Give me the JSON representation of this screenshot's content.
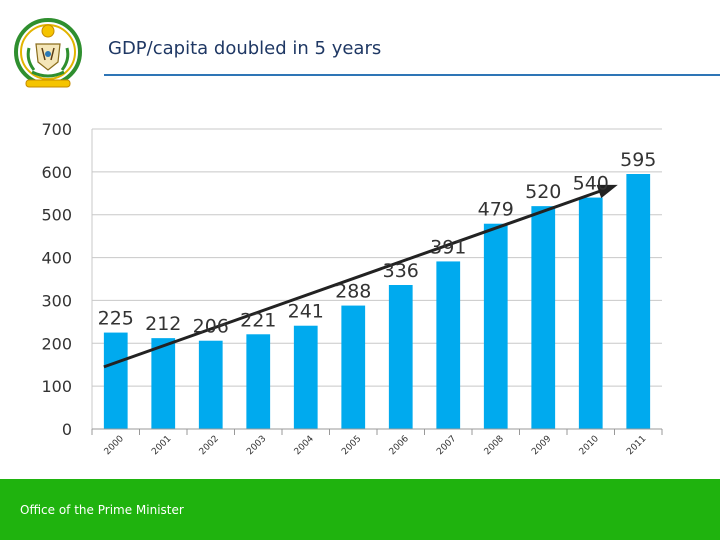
{
  "slide": {
    "title": "GDP/capita doubled in 5 years",
    "footer": "Office of the Prime Minister",
    "logo_icon": "coat-of-arms-icon"
  },
  "colors": {
    "bar": "#00aaee",
    "title": "#1f3864",
    "rule": "#2e75b6",
    "footer": "#1fb30e",
    "grid": "#c8c8c8",
    "trend": "#222222"
  },
  "chart_data": {
    "type": "bar",
    "title": "",
    "xlabel": "",
    "ylabel": "",
    "categories": [
      "2000",
      "2001",
      "2002",
      "2003",
      "2004",
      "2005",
      "2006",
      "2007",
      "2008",
      "2009",
      "2010",
      "2011"
    ],
    "values": [
      225,
      212,
      206,
      221,
      241,
      288,
      336,
      391,
      479,
      520,
      540,
      595
    ],
    "ylim": [
      0,
      700
    ],
    "yticks": [
      0,
      100,
      200,
      300,
      400,
      500,
      600,
      700
    ],
    "grid": true,
    "legend": "none",
    "annotations": [
      {
        "type": "trend-arrow",
        "from_category": "2000",
        "from_value": 145,
        "to_category": "2011",
        "to_value": 565
      }
    ]
  }
}
